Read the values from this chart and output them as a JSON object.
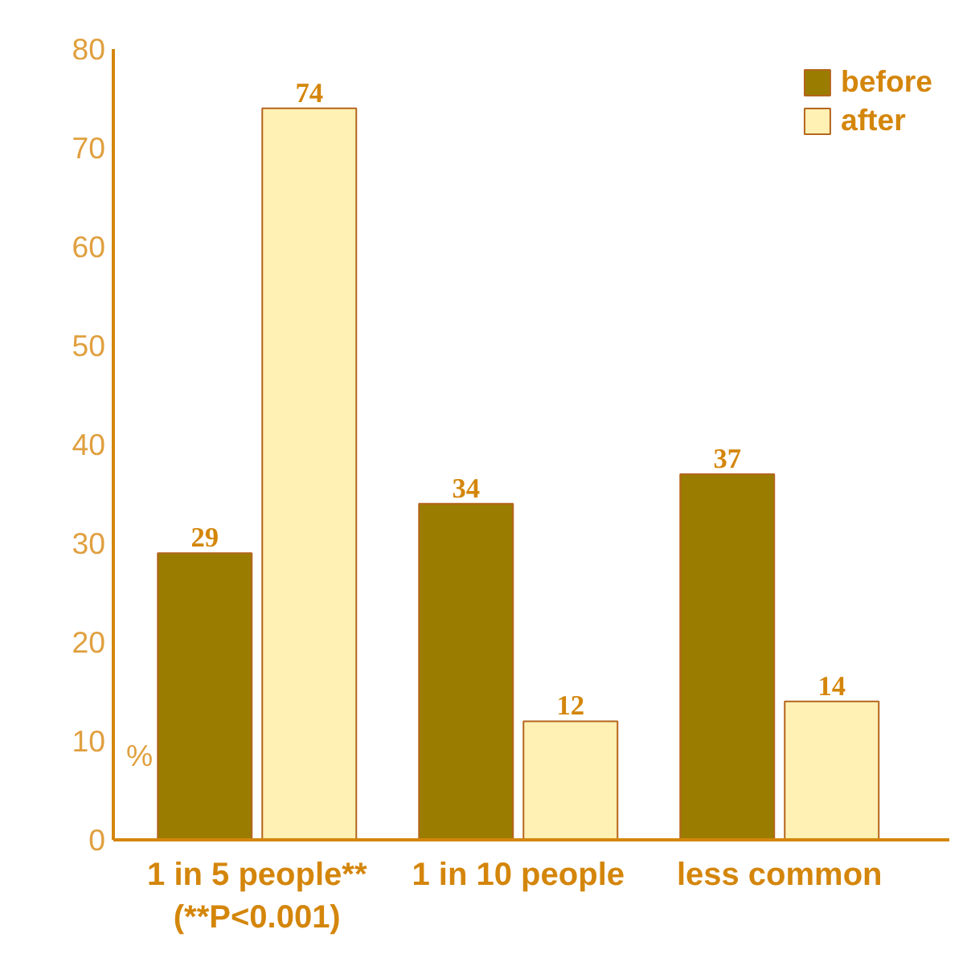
{
  "chart_data": {
    "type": "bar",
    "ylabel": "%",
    "categories": [
      "1 in 5 people**\n(**P<0.001)",
      "1 in 10 people",
      "less common"
    ],
    "series": [
      {
        "name": "before",
        "color": "#9a7d00",
        "values": [
          29,
          34,
          37
        ]
      },
      {
        "name": "after",
        "color": "#fff0b3",
        "values": [
          74,
          12,
          14
        ]
      }
    ],
    "ylim": [
      0,
      80
    ],
    "yticks": [
      0,
      10,
      20,
      30,
      40,
      50,
      60,
      70,
      80
    ],
    "grid": false,
    "legend": "top right",
    "data_labels": true
  }
}
